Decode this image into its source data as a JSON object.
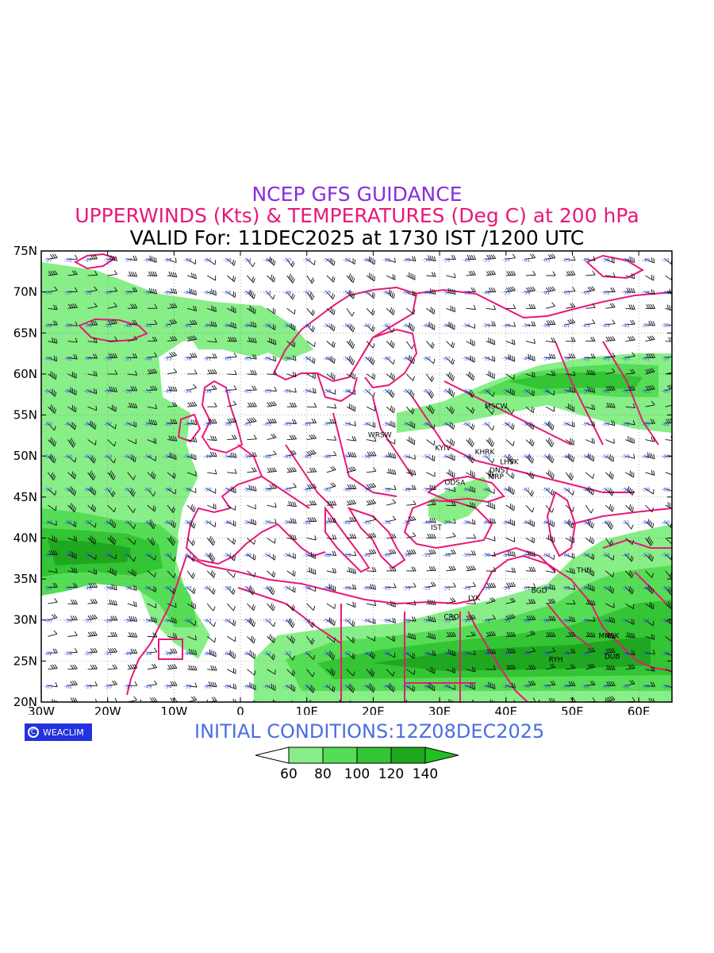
{
  "header": {
    "line1": "NCEP GFS GUIDANCE",
    "line2": "UPPERWINDS (Kts) & TEMPERATURES (Deg C) at 200 hPa",
    "line3": "VALID For: 11DEC2025 at 1730 IST /1200 UTC"
  },
  "map": {
    "lat_range": [
      20,
      75
    ],
    "lon_range": [
      -30,
      65
    ],
    "lat_ticks": [
      "20N",
      "25N",
      "30N",
      "35N",
      "40N",
      "45N",
      "50N",
      "55N",
      "60N",
      "65N",
      "70N",
      "75N"
    ],
    "lon_ticks": [
      "30W",
      "20W",
      "10W",
      "0",
      "10E",
      "20E",
      "30E",
      "40E",
      "50E",
      "60E"
    ],
    "grid": "dotted",
    "colors": {
      "coastline": "#e8187a",
      "temp_label": "#3355ee",
      "barb": "#000000",
      "frame": "#000000"
    },
    "stations": [
      {
        "name": "MSCW",
        "lon": 38.5,
        "lat": 55.8
      },
      {
        "name": "WRSW",
        "lon": 21.0,
        "lat": 52.3
      },
      {
        "name": "KYIV",
        "lon": 30.5,
        "lat": 50.7
      },
      {
        "name": "KHRK",
        "lon": 36.8,
        "lat": 50.2
      },
      {
        "name": "LHSK",
        "lon": 40.5,
        "lat": 49.0
      },
      {
        "name": "DNST",
        "lon": 39.0,
        "lat": 48.0
      },
      {
        "name": "MRP",
        "lon": 38.5,
        "lat": 47.2
      },
      {
        "name": "ODSA",
        "lon": 32.3,
        "lat": 46.5
      },
      {
        "name": "IST",
        "lon": 29.5,
        "lat": 41.0
      },
      {
        "name": "THN",
        "lon": 51.8,
        "lat": 35.8
      },
      {
        "name": "BGD",
        "lon": 45.0,
        "lat": 33.3
      },
      {
        "name": "LYK",
        "lon": 35.2,
        "lat": 32.4
      },
      {
        "name": "CRO",
        "lon": 31.8,
        "lat": 30.1
      },
      {
        "name": "MNSK",
        "lon": 55.5,
        "lat": 27.8
      },
      {
        "name": "DUB",
        "lon": 56.0,
        "lat": 25.3
      },
      {
        "name": "RYH",
        "lon": 47.5,
        "lat": 24.9
      }
    ]
  },
  "footer": {
    "badge": "WEACLIM",
    "badge_icon_char": "C",
    "initial": "INITIAL  CONDITIONS:12Z08DEC2025",
    "colorbar": {
      "labels": [
        "60",
        "80",
        "100",
        "120",
        "140"
      ],
      "colors": [
        "#ffffff",
        "#88ee88",
        "#55dd55",
        "#33c533",
        "#1fa81f",
        "#22c022"
      ]
    }
  }
}
